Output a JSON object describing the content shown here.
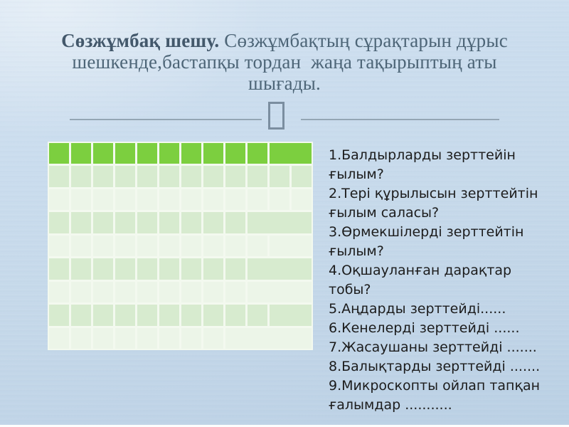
{
  "slide": {
    "title": {
      "lead": "Сөзжұмбақ шешу.",
      "line1_rest": " Сөзжұмбақтың сұрақтарын дұрыс",
      "line2": "шешкенде,бастапқы тордан  жаңа тақырыптың аты",
      "line3": "шығады."
    },
    "questions": [
      "1.Балдырларды зерттейін ғылым?",
      "2.Тері құрылысын зерттейтін ғылым саласы?",
      "3.Өрмекшілерді зерттейтін ғылым?",
      "4.Оқшауланған дарақтар тобы?",
      "5.Аңдарды зерттейді......",
      "6.Кенелерді зерттейді ......",
      "7.Жасаушаны зерттейді .......",
      "8.Балықтарды зерттейді .......",
      "9.Микроскопты ойлап тапқан ғалымдар ..........."
    ],
    "grid": {
      "columns": 12,
      "colors": {
        "header": "#7ccf3f",
        "a": "#d7ebcf",
        "b": "#ecf5e8",
        "gap": "#f3f9ef"
      },
      "rows": [
        {
          "shade": "header",
          "cells": [
            1,
            1,
            1,
            1,
            1,
            1,
            1,
            1,
            1,
            1,
            2
          ]
        },
        {
          "shade": "a",
          "cells": [
            1,
            1,
            1,
            1,
            1,
            1,
            1,
            1,
            1,
            1,
            1,
            1
          ]
        },
        {
          "shade": "b",
          "cells": [
            1,
            1,
            1,
            1,
            1,
            1,
            1,
            1,
            1,
            1,
            1,
            1
          ]
        },
        {
          "shade": "a",
          "cells": [
            1,
            1,
            1,
            1,
            1,
            1,
            1,
            1,
            1,
            3
          ]
        },
        {
          "shade": "b",
          "cells": [
            1,
            1,
            1,
            1,
            1,
            1,
            1,
            1,
            1,
            1,
            2
          ]
        },
        {
          "shade": "a",
          "cells": [
            1,
            1,
            1,
            1,
            1,
            1,
            1,
            1,
            1,
            3
          ]
        },
        {
          "shade": "b",
          "cells": [
            1,
            1,
            1,
            1,
            1,
            1,
            1,
            1,
            1,
            3
          ]
        },
        {
          "shade": "a",
          "cells": [
            1,
            1,
            1,
            1,
            1,
            1,
            1,
            1,
            1,
            1,
            2
          ]
        },
        {
          "shade": "b",
          "cells": [
            1,
            1,
            1,
            1,
            1,
            1,
            1,
            1,
            4
          ]
        }
      ]
    },
    "colors": {
      "background_blue": "#c6d9ea",
      "title_text": "#4d6577",
      "question_text": "#1c1c1c",
      "divider": "#8a9cab"
    }
  }
}
